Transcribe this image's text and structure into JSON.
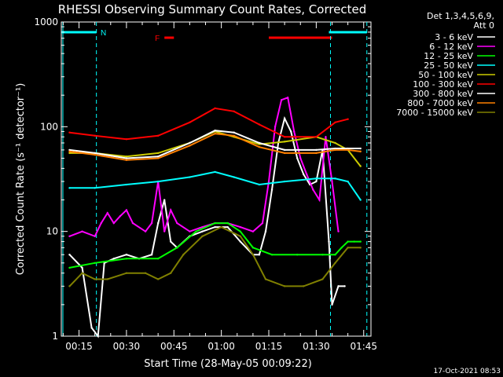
{
  "chart_data": {
    "type": "line",
    "title": "RHESSI Observing Summary Count Rates, Corrected",
    "xlabel": "Start Time (28-May-05 00:09:22)",
    "ylabel": "Corrected Count Rate (s⁻¹ detector⁻¹)",
    "yscale": "log",
    "ylim": [
      1,
      1000
    ],
    "xlim_minutes": [
      9.4,
      107.3
    ],
    "x_tick_labels": [
      "00:15",
      "00:30",
      "00:45",
      "01:00",
      "01:15",
      "01:30",
      "01:45"
    ],
    "x_tick_minutes": [
      15,
      30,
      45,
      60,
      75,
      90,
      105
    ],
    "y_tick_labels": [
      "1",
      "10",
      "100",
      "1000"
    ],
    "y_tick_values": [
      1,
      10,
      100,
      1000
    ],
    "legend_header": [
      "Det 1,3,4,5,6,9,",
      "Att 0"
    ],
    "legend_position": "right",
    "timestamp": "17-Oct-2021 08:53",
    "flags": [
      {
        "label": "N",
        "color": "#00ffff",
        "segments": [
          [
            9.4,
            20.5
          ],
          [
            94,
            106
          ]
        ]
      },
      {
        "label": "F",
        "color": "#ff0000",
        "segments": [
          [
            42,
            45
          ],
          [
            75,
            95
          ]
        ]
      }
    ],
    "markers_minutes": [
      20.5,
      94.5,
      106
    ],
    "series": [
      {
        "name": "3 - 6 keV",
        "color": "#ffffff",
        "points": [
          [
            12,
            6
          ],
          [
            16,
            4.5
          ],
          [
            19,
            1.2
          ],
          [
            21,
            1.0
          ],
          [
            23,
            5
          ],
          [
            26,
            5.5
          ],
          [
            30,
            6
          ],
          [
            34,
            5.5
          ],
          [
            38,
            6
          ],
          [
            40,
            12
          ],
          [
            42,
            20
          ],
          [
            44,
            8
          ],
          [
            46,
            7
          ],
          [
            50,
            9
          ],
          [
            54,
            10
          ],
          [
            58,
            11
          ],
          [
            62,
            11
          ],
          [
            66,
            8
          ],
          [
            70,
            6
          ],
          [
            72,
            6
          ],
          [
            74,
            10
          ],
          [
            76,
            25
          ],
          [
            78,
            70
          ],
          [
            80,
            120
          ],
          [
            82,
            90
          ],
          [
            84,
            50
          ],
          [
            86,
            35
          ],
          [
            88,
            28
          ],
          [
            90,
            30
          ],
          [
            92,
            60
          ],
          [
            94,
            8
          ],
          [
            95,
            2
          ],
          [
            97,
            3
          ],
          [
            99,
            3
          ]
        ]
      },
      {
        "name": "6 - 12 keV",
        "color": "#ff00ff",
        "points": [
          [
            12,
            9
          ],
          [
            16,
            10
          ],
          [
            20,
            9
          ],
          [
            22,
            12
          ],
          [
            24,
            15
          ],
          [
            26,
            12
          ],
          [
            28,
            14
          ],
          [
            30,
            16
          ],
          [
            32,
            12
          ],
          [
            36,
            10
          ],
          [
            38,
            12
          ],
          [
            40,
            30
          ],
          [
            42,
            10
          ],
          [
            44,
            16
          ],
          [
            46,
            12
          ],
          [
            50,
            10
          ],
          [
            54,
            11
          ],
          [
            58,
            12
          ],
          [
            62,
            12
          ],
          [
            66,
            11
          ],
          [
            70,
            10
          ],
          [
            73,
            12
          ],
          [
            75,
            30
          ],
          [
            77,
            100
          ],
          [
            79,
            180
          ],
          [
            81,
            190
          ],
          [
            83,
            90
          ],
          [
            85,
            50
          ],
          [
            87,
            35
          ],
          [
            89,
            25
          ],
          [
            91,
            20
          ],
          [
            93,
            80
          ],
          [
            95,
            30
          ],
          [
            97,
            10
          ]
        ]
      },
      {
        "name": "12 - 25 keV",
        "color": "#00ff00",
        "points": [
          [
            12,
            4.5
          ],
          [
            20,
            5
          ],
          [
            30,
            5.5
          ],
          [
            40,
            5.5
          ],
          [
            46,
            7
          ],
          [
            52,
            10
          ],
          [
            58,
            12
          ],
          [
            62,
            12
          ],
          [
            66,
            10
          ],
          [
            70,
            7
          ],
          [
            76,
            6
          ],
          [
            84,
            6
          ],
          [
            92,
            6
          ],
          [
            96,
            6
          ],
          [
            98,
            7
          ],
          [
            100,
            8
          ],
          [
            102,
            8
          ],
          [
            104,
            8
          ]
        ]
      },
      {
        "name": "25 - 50 keV",
        "color": "#00ffff",
        "points": [
          [
            12,
            26
          ],
          [
            20,
            26
          ],
          [
            30,
            28
          ],
          [
            40,
            30
          ],
          [
            50,
            33
          ],
          [
            58,
            37
          ],
          [
            64,
            33
          ],
          [
            72,
            28
          ],
          [
            80,
            30
          ],
          [
            90,
            32
          ],
          [
            96,
            32
          ],
          [
            100,
            30
          ],
          [
            104,
            20
          ]
        ]
      },
      {
        "name": "50 - 100 keV",
        "color": "#cccc00",
        "points": [
          [
            12,
            56
          ],
          [
            20,
            56
          ],
          [
            30,
            52
          ],
          [
            40,
            56
          ],
          [
            50,
            70
          ],
          [
            58,
            90
          ],
          [
            64,
            80
          ],
          [
            72,
            68
          ],
          [
            80,
            72
          ],
          [
            90,
            80
          ],
          [
            96,
            70
          ],
          [
            100,
            60
          ],
          [
            104,
            42
          ]
        ]
      },
      {
        "name": "100 - 300 keV",
        "color": "#ff0000",
        "points": [
          [
            12,
            88
          ],
          [
            20,
            82
          ],
          [
            30,
            76
          ],
          [
            40,
            82
          ],
          [
            50,
            110
          ],
          [
            58,
            150
          ],
          [
            64,
            140
          ],
          [
            72,
            105
          ],
          [
            80,
            80
          ],
          [
            90,
            80
          ],
          [
            96,
            110
          ],
          [
            100,
            118
          ]
        ]
      },
      {
        "name": "300 - 800 keV",
        "color": "#ffffff",
        "points": [
          [
            12,
            60
          ],
          [
            20,
            56
          ],
          [
            30,
            50
          ],
          [
            40,
            52
          ],
          [
            50,
            70
          ],
          [
            58,
            92
          ],
          [
            64,
            88
          ],
          [
            72,
            70
          ],
          [
            80,
            60
          ],
          [
            90,
            60
          ],
          [
            96,
            62
          ],
          [
            100,
            62
          ],
          [
            104,
            62
          ]
        ]
      },
      {
        "name": "800 - 7000 keV",
        "color": "#ff8000",
        "points": [
          [
            12,
            58
          ],
          [
            20,
            54
          ],
          [
            30,
            48
          ],
          [
            40,
            50
          ],
          [
            50,
            66
          ],
          [
            58,
            86
          ],
          [
            64,
            82
          ],
          [
            72,
            64
          ],
          [
            80,
            56
          ],
          [
            90,
            56
          ],
          [
            96,
            60
          ],
          [
            100,
            60
          ],
          [
            104,
            58
          ]
        ]
      },
      {
        "name": "7000 - 15000 keV",
        "color": "#808000",
        "points": [
          [
            12,
            3
          ],
          [
            16,
            4
          ],
          [
            20,
            3.5
          ],
          [
            24,
            3.5
          ],
          [
            30,
            4
          ],
          [
            36,
            4
          ],
          [
            40,
            3.5
          ],
          [
            44,
            4
          ],
          [
            48,
            6
          ],
          [
            54,
            9
          ],
          [
            60,
            11
          ],
          [
            66,
            9
          ],
          [
            70,
            6
          ],
          [
            74,
            3.5
          ],
          [
            80,
            3
          ],
          [
            86,
            3
          ],
          [
            92,
            3.5
          ],
          [
            96,
            5
          ],
          [
            100,
            7
          ],
          [
            104,
            7
          ]
        ]
      }
    ]
  }
}
